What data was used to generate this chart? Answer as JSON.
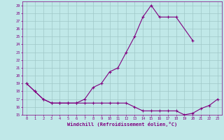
{
  "line1_x": [
    0,
    1,
    2,
    3,
    4,
    5,
    6,
    7,
    8,
    9,
    10,
    11,
    12,
    13,
    14,
    15,
    16,
    17,
    18,
    20
  ],
  "line1_y": [
    19,
    18,
    17,
    16.5,
    16.5,
    16.5,
    16.5,
    17,
    18.5,
    19,
    20.5,
    21,
    23,
    25,
    27.5,
    29,
    27.5,
    27.5,
    27.5,
    24.5
  ],
  "line2_x": [
    0,
    1,
    2,
    3,
    4,
    5,
    6,
    7,
    8,
    9,
    10,
    11,
    12,
    13,
    14,
    15,
    16,
    17,
    18,
    19,
    20,
    21,
    22,
    23
  ],
  "line2_y": [
    19,
    18,
    17,
    16.5,
    16.5,
    16.5,
    16.5,
    16.5,
    16.5,
    16.5,
    16.5,
    16.5,
    16.5,
    16.0,
    15.5,
    15.5,
    15.5,
    15.5,
    15.5,
    15.0,
    15.2,
    15.8,
    16.2,
    17.0
  ],
  "color": "#800080",
  "bg_color": "#c0e8e8",
  "grid_color": "#a0c8c8",
  "xlabel": "Windchill (Refroidissement éolien,°C)",
  "xlim": [
    -0.5,
    23.5
  ],
  "ylim": [
    15,
    29.5
  ],
  "yticks": [
    15,
    16,
    17,
    18,
    19,
    20,
    21,
    22,
    23,
    24,
    25,
    26,
    27,
    28,
    29
  ],
  "xticks": [
    0,
    1,
    2,
    3,
    4,
    5,
    6,
    7,
    8,
    9,
    10,
    11,
    12,
    13,
    14,
    15,
    16,
    17,
    18,
    19,
    20,
    21,
    22,
    23
  ]
}
